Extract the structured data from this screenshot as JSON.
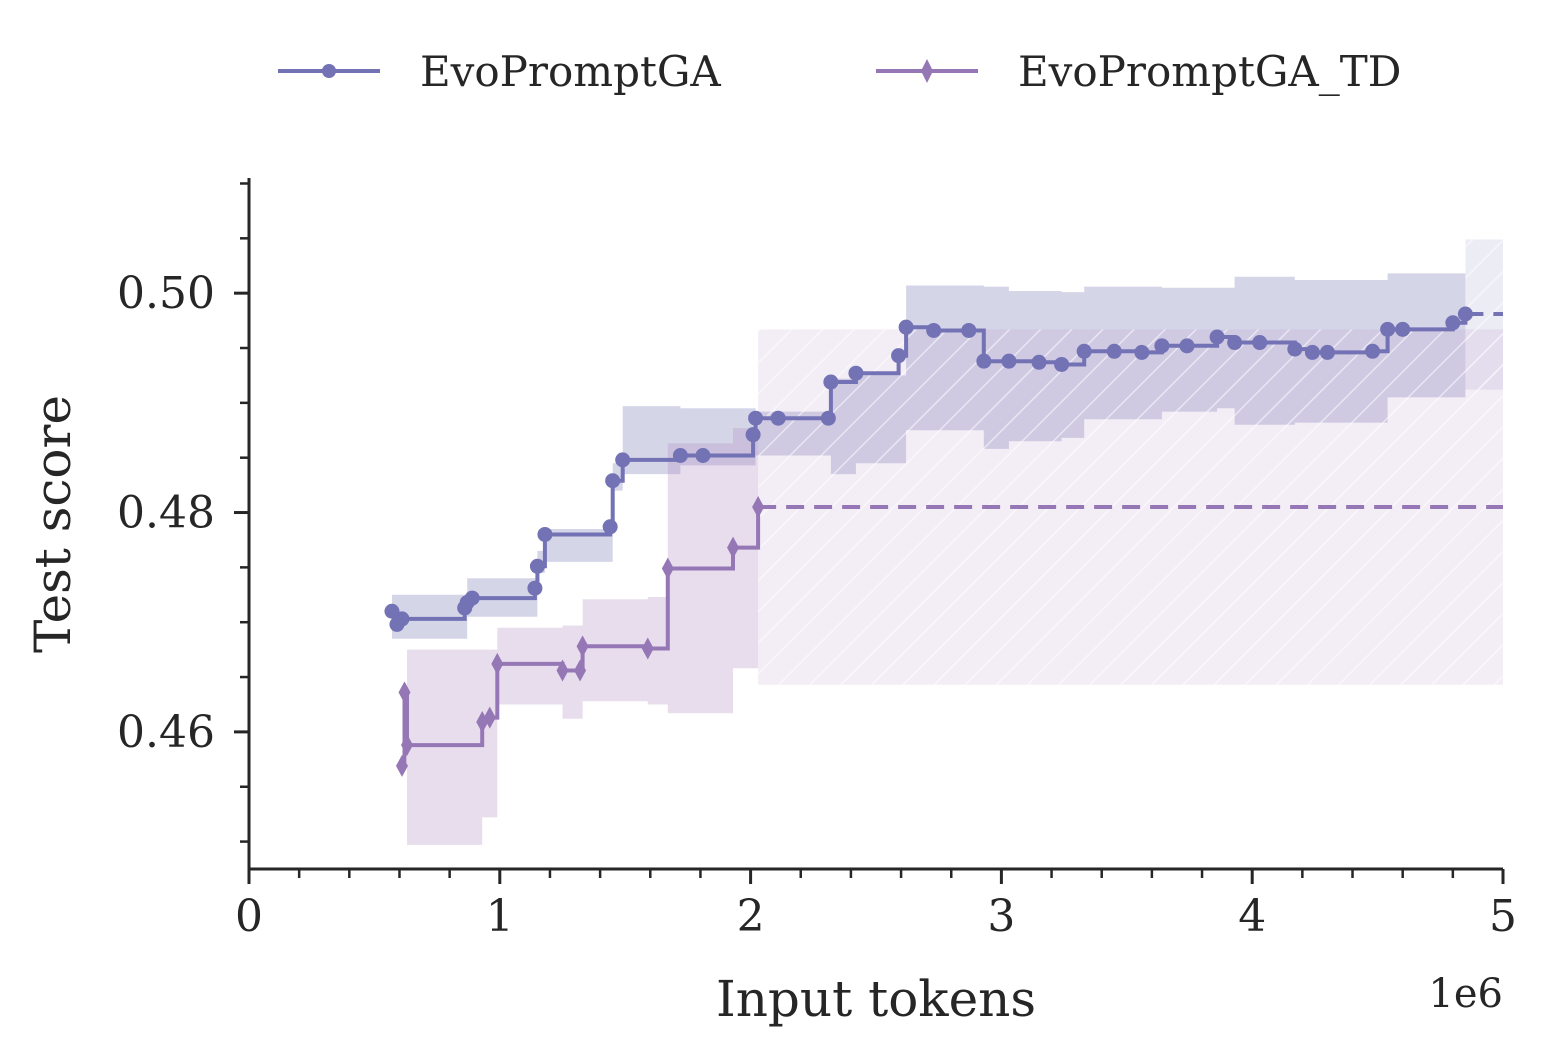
{
  "chart_data": {
    "type": "line",
    "xlabel": "Input tokens",
    "ylabel": "Test score",
    "x_offset_label": "1e6",
    "xlim": [
      0,
      5000000
    ],
    "ylim": [
      0.4475,
      0.5105
    ],
    "x_major_ticks": [
      {
        "value": 0,
        "label": "0"
      },
      {
        "value": 1000000,
        "label": "1"
      },
      {
        "value": 2000000,
        "label": "2"
      },
      {
        "value": 3000000,
        "label": "3"
      },
      {
        "value": 4000000,
        "label": "4"
      },
      {
        "value": 5000000,
        "label": "5"
      }
    ],
    "y_major_ticks": [
      {
        "value": 0.46,
        "label": "0.46"
      },
      {
        "value": 0.48,
        "label": "0.48"
      },
      {
        "value": 0.5,
        "label": "0.50"
      }
    ],
    "grid": false,
    "legend_position": "top-center",
    "series": [
      {
        "name": "EvoPromptGA",
        "color": "#7272b4",
        "band_color": "#7b7bb8",
        "marker": "circle",
        "points": [
          [
            570000,
            0.471
          ],
          [
            590000,
            0.4698
          ],
          [
            610000,
            0.4703
          ],
          [
            860000,
            0.4713
          ],
          [
            870000,
            0.4718
          ],
          [
            890000,
            0.4722
          ],
          [
            1140000,
            0.4731
          ],
          [
            1150000,
            0.4751
          ],
          [
            1180000,
            0.478
          ],
          [
            1440000,
            0.4787
          ],
          [
            1450000,
            0.4829
          ],
          [
            1490000,
            0.4848
          ],
          [
            1720000,
            0.4852
          ],
          [
            1810000,
            0.4852
          ],
          [
            2010000,
            0.4871
          ],
          [
            2020000,
            0.4886
          ],
          [
            2110000,
            0.4886
          ],
          [
            2310000,
            0.4886
          ],
          [
            2320000,
            0.4919
          ],
          [
            2420000,
            0.4927
          ],
          [
            2590000,
            0.4943
          ],
          [
            2620000,
            0.4969
          ],
          [
            2730000,
            0.4966
          ],
          [
            2870000,
            0.4966
          ],
          [
            2930000,
            0.4938
          ],
          [
            3030000,
            0.4938
          ],
          [
            3150000,
            0.4937
          ],
          [
            3240000,
            0.4935
          ],
          [
            3330000,
            0.4947
          ],
          [
            3450000,
            0.4947
          ],
          [
            3560000,
            0.4946
          ],
          [
            3640000,
            0.4952
          ],
          [
            3740000,
            0.4952
          ],
          [
            3860000,
            0.496
          ],
          [
            3930000,
            0.4955
          ],
          [
            4030000,
            0.4955
          ],
          [
            4170000,
            0.4949
          ],
          [
            4240000,
            0.4946
          ],
          [
            4300000,
            0.4946
          ],
          [
            4480000,
            0.4947
          ],
          [
            4540000,
            0.4967
          ],
          [
            4600000,
            0.4967
          ],
          [
            4800000,
            0.4973
          ],
          [
            4850000,
            0.4981
          ]
        ],
        "extension": {
          "from_x": 4850000,
          "to_x": 5000000,
          "y": 0.4981
        },
        "band": [
          [
            570000,
            0.4685,
            0.4725
          ],
          [
            870000,
            0.4705,
            0.474
          ],
          [
            1150000,
            0.4745,
            0.4765
          ],
          [
            1180000,
            0.4755,
            0.4785
          ],
          [
            1450000,
            0.482,
            0.4845
          ],
          [
            1490000,
            0.4835,
            0.4897
          ],
          [
            1720000,
            0.4843,
            0.4895
          ],
          [
            2020000,
            0.4852,
            0.4892
          ],
          [
            2320000,
            0.4835,
            0.4922
          ],
          [
            2420000,
            0.4845,
            0.4925
          ],
          [
            2620000,
            0.4875,
            0.5007
          ],
          [
            2930000,
            0.4858,
            0.5006
          ],
          [
            3030000,
            0.4865,
            0.5002
          ],
          [
            3240000,
            0.4868,
            0.5001
          ],
          [
            3330000,
            0.4885,
            0.5006
          ],
          [
            3640000,
            0.4892,
            0.5005
          ],
          [
            3860000,
            0.4895,
            0.5005
          ],
          [
            3930000,
            0.488,
            0.5015
          ],
          [
            4170000,
            0.4882,
            0.5012
          ],
          [
            4540000,
            0.4905,
            0.5018
          ],
          [
            4850000,
            0.4912,
            0.5031
          ]
        ],
        "band_extension": {
          "from_x": 4850000,
          "to_x": 5000000,
          "lower": 0.4912,
          "upper": 0.5049
        }
      },
      {
        "name": "EvoPromptGA_TD",
        "color": "#9677b6",
        "band_color": "#b490c4",
        "marker": "diamond",
        "points": [
          [
            610000,
            0.4569
          ],
          [
            620000,
            0.4636
          ],
          [
            630000,
            0.4588
          ],
          [
            930000,
            0.4609
          ],
          [
            960000,
            0.4613
          ],
          [
            990000,
            0.4662
          ],
          [
            1250000,
            0.4656
          ],
          [
            1320000,
            0.4656
          ],
          [
            1330000,
            0.4678
          ],
          [
            1590000,
            0.4676
          ],
          [
            1670000,
            0.4749
          ],
          [
            1930000,
            0.4768
          ],
          [
            2030000,
            0.4805
          ]
        ],
        "extension": {
          "from_x": 2030000,
          "to_x": 5000000,
          "y": 0.4805
        },
        "band": [
          [
            630000,
            0.4497,
            0.4675
          ],
          [
            930000,
            0.4522,
            0.4675
          ],
          [
            990000,
            0.4625,
            0.4695
          ],
          [
            1250000,
            0.4612,
            0.4697
          ],
          [
            1330000,
            0.4628,
            0.4721
          ],
          [
            1590000,
            0.4625,
            0.4723
          ],
          [
            1670000,
            0.4617,
            0.4863
          ],
          [
            1930000,
            0.4658,
            0.4877
          ]
        ],
        "band_extension": {
          "from_x": 2030000,
          "to_x": 5000000,
          "lower": 0.4643,
          "upper": 0.4967
        }
      }
    ]
  }
}
